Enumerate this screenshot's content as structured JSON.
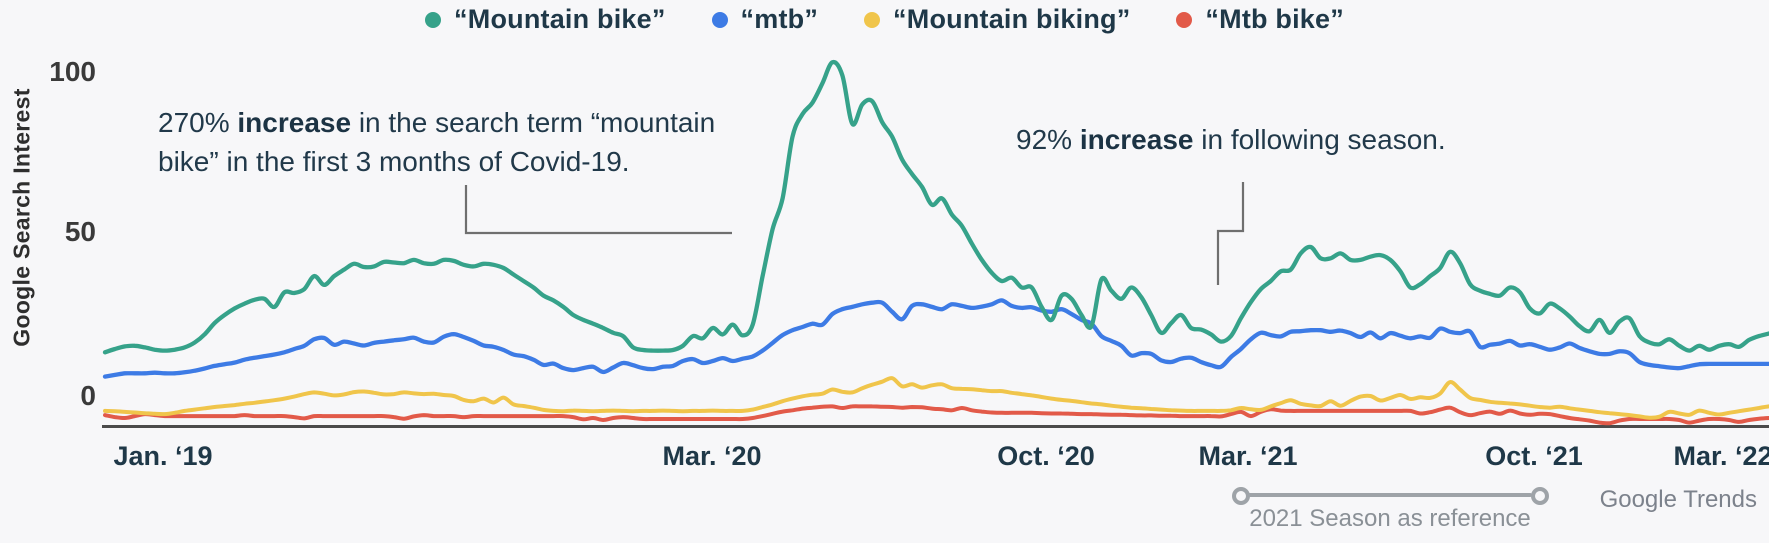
{
  "chart_data": {
    "type": "line",
    "title": "",
    "ylabel": "Google Search Interest",
    "y_ticks": [
      "100",
      "50",
      "0"
    ],
    "y_tick_values": [
      100,
      50,
      0
    ],
    "ylim": [
      -10,
      106
    ],
    "grid": false,
    "legend_position": "top-center",
    "x_tick_labels": [
      "Jan. ‘19",
      "Mar. ‘20",
      "Oct. ‘20",
      "Mar. ‘21",
      "Oct. ‘21",
      "Mar. ‘22"
    ],
    "x_range_note": "Jan. ‘19 to Mar. ‘22",
    "source_credit": "Google Trends",
    "reference_range": {
      "label": "2021 Season as reference",
      "from": "Mar. ‘21",
      "to": "Oct. ‘21"
    },
    "annotations": [
      {
        "prefix": "270% ",
        "bold": "increase",
        "rest": " in the search term “mountain bike” in the first 3 months of Covid-19."
      },
      {
        "prefix": "92% ",
        "bold": "increase",
        "rest": " in following season."
      }
    ],
    "series": [
      {
        "name": "“Mountain bike”",
        "color": "#36a28a",
        "values": [
          13.5,
          14.5,
          15.3,
          15.5,
          15,
          14.3,
          14,
          14.3,
          15,
          16.5,
          19,
          22.5,
          25,
          27,
          28.5,
          29.7,
          30,
          27.5,
          32,
          31.8,
          33,
          37,
          34.3,
          37,
          39,
          40.8,
          39.8,
          40,
          41.4,
          41.2,
          41,
          42,
          41,
          40.8,
          42,
          41.7,
          40.5,
          40,
          40.8,
          40.5,
          39.5,
          37.5,
          35.5,
          33.5,
          31,
          29.5,
          27.5,
          25,
          23.5,
          22.3,
          21,
          19.5,
          18.5,
          15,
          14.2,
          14,
          14,
          14.2,
          15.5,
          18.5,
          17.8,
          21,
          19,
          22,
          18.7,
          22,
          37,
          51.5,
          61,
          80,
          87,
          90.5,
          96.5,
          103,
          99,
          84,
          90,
          91,
          84.5,
          80,
          73,
          68.5,
          64.5,
          59,
          61,
          56,
          52.5,
          47,
          42,
          38,
          35.5,
          36.5,
          33.5,
          33.5,
          27.5,
          23.5,
          31,
          30,
          25,
          21.5,
          36,
          32.5,
          30,
          33.5,
          30.5,
          25,
          19.5,
          22.5,
          25,
          21,
          20.5,
          19,
          16.8,
          18.5,
          24,
          29,
          33,
          35.5,
          38.5,
          39,
          44,
          46,
          42.5,
          42.5,
          44,
          42,
          42,
          43,
          43.5,
          42,
          38.5,
          33.5,
          34.5,
          37,
          39.5,
          44.5,
          41,
          34.5,
          32.5,
          31.5,
          31,
          33.5,
          32,
          27,
          25.5,
          28.5,
          27,
          24.5,
          21.5,
          20,
          23.5,
          19.5,
          23,
          24,
          18.5,
          16.5,
          16,
          17.5,
          15.5,
          14,
          15.5,
          14.3,
          15.5,
          16,
          15.2,
          17.3,
          18.5,
          19.3
        ]
      },
      {
        "name": "“mtb”",
        "color": "#3d7be5",
        "values": [
          6,
          6.5,
          7,
          7,
          7,
          7.2,
          7,
          7,
          7.3,
          7.8,
          8.5,
          9.3,
          9.8,
          10.3,
          11.2,
          11.8,
          12.3,
          12.8,
          13.5,
          14.5,
          15.5,
          17.5,
          17.9,
          15.8,
          16.8,
          16.2,
          15.6,
          16.4,
          16.8,
          17.2,
          17.5,
          18,
          16.8,
          16.5,
          18.3,
          19.1,
          18.2,
          17,
          15.6,
          15.2,
          14.2,
          12.8,
          12.3,
          11.2,
          9.6,
          10,
          8.6,
          8,
          8.6,
          9,
          7.4,
          8.8,
          10.2,
          9.5,
          8.6,
          8.3,
          9,
          9.3,
          10.8,
          11.4,
          10.2,
          10.8,
          11.7,
          10.8,
          11.5,
          12.2,
          14,
          16.4,
          18.8,
          20.3,
          21.3,
          22.3,
          22,
          25.3,
          26.8,
          27.5,
          28.3,
          28.8,
          28.8,
          26,
          23.7,
          27.8,
          28.3,
          27.5,
          26.8,
          28.3,
          27.8,
          27.2,
          27.6,
          28.3,
          29.5,
          27.8,
          27.2,
          27.4,
          26.4,
          26,
          26.8,
          25.3,
          23.5,
          22.3,
          18.5,
          17,
          15.5,
          12.5,
          13.2,
          13,
          11,
          10.5,
          11.5,
          11.8,
          10.5,
          9.5,
          9,
          12,
          14.5,
          17.5,
          19.5,
          18.8,
          18.4,
          19.8,
          20,
          20.3,
          20.3,
          19.8,
          20.2,
          19.4,
          18.2,
          19.6,
          17.8,
          19.4,
          18.6,
          17.8,
          18.4,
          18,
          20.8,
          19.8,
          19.4,
          19.9,
          15.2,
          15.8,
          16.2,
          17,
          15.6,
          16,
          15.2,
          14.3,
          15,
          16.2,
          14.8,
          13.8,
          13,
          13,
          13.8,
          13.2,
          10.5,
          9.6,
          9.2,
          8.8,
          8.6,
          9.2,
          9.8,
          9.9,
          9.9,
          9.9,
          9.9,
          9.9,
          9.9,
          9.9
        ]
      },
      {
        "name": "“Mountain biking”",
        "color": "#f0c54b",
        "values": [
          -4.6,
          -4.7,
          -4.9,
          -5.1,
          -5.3,
          -5.5,
          -5.6,
          -5.2,
          -4.6,
          -4.2,
          -3.8,
          -3.4,
          -3.1,
          -2.8,
          -2.4,
          -2.1,
          -1.7,
          -1.3,
          -0.8,
          -0.2,
          0.6,
          1.1,
          0.7,
          0.2,
          0.5,
          1.2,
          1.4,
          1,
          0.5,
          0.6,
          1.1,
          0.8,
          0.6,
          0.7,
          0.3,
          0,
          -1.2,
          -1.6,
          -0.8,
          -2,
          -0.5,
          -2.6,
          -3.1,
          -3.6,
          -4.3,
          -4.6,
          -4.7,
          -4.5,
          -4.6,
          -4.7,
          -4.6,
          -4.5,
          -4.6,
          -4.7,
          -4.6,
          -4.6,
          -4.5,
          -4.6,
          -4.7,
          -4.6,
          -4.6,
          -4.5,
          -4.6,
          -4.6,
          -4.6,
          -4.2,
          -3.4,
          -2.6,
          -1.6,
          -0.8,
          -0.1,
          0.4,
          0.7,
          2,
          1.3,
          1.1,
          2.4,
          3.5,
          4.4,
          5.5,
          3,
          3.6,
          2.6,
          3.3,
          3.6,
          2.4,
          2.2,
          2.1,
          1.8,
          1.5,
          1.5,
          1,
          0.6,
          0.2,
          -0.3,
          -0.8,
          -1.2,
          -1.5,
          -1.9,
          -2.3,
          -2.6,
          -3,
          -3.3,
          -3.6,
          -3.8,
          -4,
          -4.2,
          -4.4,
          -4.5,
          -4.6,
          -4.6,
          -4.6,
          -4.6,
          -4.4,
          -3.7,
          -4.1,
          -4.3,
          -3.2,
          -2.2,
          -1.3,
          -2.4,
          -2.9,
          -3.1,
          -1.6,
          -3,
          -1.5,
          -0.2,
          0,
          -1.4,
          -0.6,
          0.3,
          -0.9,
          -0.4,
          -0.6,
          0.8,
          4.3,
          2,
          -0.6,
          -1.2,
          -1.8,
          -2.1,
          -2.3,
          -2.6,
          -3,
          -3.4,
          -3.6,
          -3.3,
          -3.8,
          -4.2,
          -4.6,
          -5,
          -5.3,
          -5.6,
          -5.9,
          -6.3,
          -6.7,
          -6.4,
          -4.9,
          -5.4,
          -5.8,
          -4.5,
          -5.2,
          -5.7,
          -5.2,
          -4.7,
          -4.2,
          -3.7,
          -3.2
        ]
      },
      {
        "name": "“Mtb bike”",
        "color": "#e25a49",
        "values": [
          -5.9,
          -6.5,
          -6.8,
          -6.2,
          -5.6,
          -5.9,
          -6.2,
          -6.2,
          -6.2,
          -6.2,
          -6.2,
          -6.2,
          -6.2,
          -6.2,
          -5.9,
          -6.2,
          -6.2,
          -6.2,
          -6.2,
          -6.5,
          -6.9,
          -6.2,
          -6.2,
          -6.2,
          -6.2,
          -6.2,
          -6.2,
          -6.2,
          -6.2,
          -6.5,
          -7,
          -6.3,
          -5.9,
          -6.2,
          -6.2,
          -6.2,
          -6.5,
          -6.2,
          -6.2,
          -6.2,
          -6.2,
          -6.2,
          -6.2,
          -6.2,
          -6.2,
          -6.2,
          -6.2,
          -6.5,
          -7.2,
          -6.8,
          -7.4,
          -6.8,
          -6.5,
          -6.8,
          -7.1,
          -7.1,
          -7.1,
          -7.1,
          -7.1,
          -7.1,
          -7.1,
          -7.1,
          -7.1,
          -7.1,
          -7.1,
          -6.8,
          -6.2,
          -5.5,
          -4.8,
          -4.4,
          -3.9,
          -3.6,
          -3.3,
          -3.2,
          -3.7,
          -3.2,
          -3.2,
          -3.2,
          -3.3,
          -3.4,
          -3.6,
          -3.4,
          -3.5,
          -3.9,
          -4.1,
          -4.4,
          -3.7,
          -4.4,
          -4.8,
          -5.1,
          -5.2,
          -5.2,
          -5.2,
          -5.2,
          -5.3,
          -5.4,
          -5.4,
          -5.5,
          -5.6,
          -5.6,
          -5.7,
          -5.8,
          -5.8,
          -5.9,
          -6,
          -6,
          -6.1,
          -6.1,
          -6.2,
          -6.2,
          -6.2,
          -6.2,
          -6.3,
          -5.6,
          -4.9,
          -6.2,
          -4.9,
          -4.1,
          -4.5,
          -4.6,
          -4.6,
          -4.6,
          -4.6,
          -4.6,
          -4.6,
          -4.6,
          -4.6,
          -4.6,
          -4.6,
          -4.6,
          -4.6,
          -4.6,
          -5.4,
          -5,
          -4.2,
          -3.6,
          -5,
          -5.9,
          -5.3,
          -4.8,
          -5.5,
          -4.5,
          -5.4,
          -5.8,
          -5.5,
          -5.6,
          -6.2,
          -6.8,
          -7.2,
          -7.6,
          -8.2,
          -8.4,
          -7.6,
          -7.1,
          -7.1,
          -7.1,
          -7.1,
          -7.1,
          -7.4,
          -8.2,
          -7.6,
          -7.1,
          -7.1,
          -7.4,
          -8,
          -7.4,
          -7,
          -6.8
        ]
      }
    ]
  }
}
